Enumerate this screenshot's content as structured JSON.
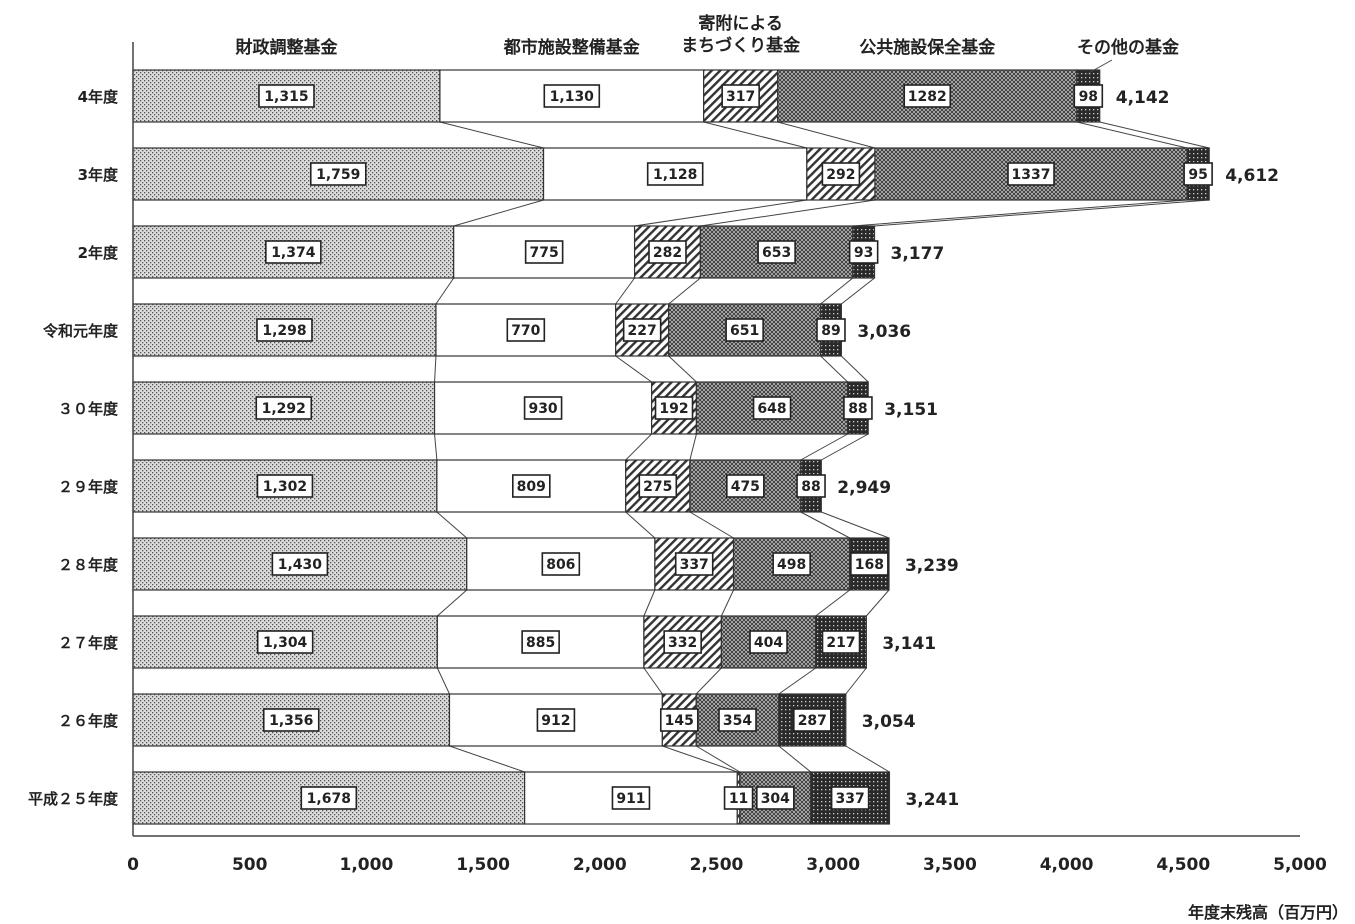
{
  "chart_data": {
    "type": "bar",
    "orientation": "horizontal",
    "stacked": true,
    "categories": [
      "4年度",
      "3年度",
      "2年度",
      "令和元年度",
      "３０年度",
      "２９年度",
      "２８年度",
      "２７年度",
      "２６年度",
      "平成２５年度"
    ],
    "series": [
      {
        "name": "財政調整基金",
        "values": [
          1315,
          1759,
          1374,
          1298,
          1292,
          1302,
          1430,
          1304,
          1356,
          1678
        ],
        "labels": [
          "1,315",
          "1,759",
          "1,374",
          "1,298",
          "1,292",
          "1,302",
          "1,430",
          "1,304",
          "1,356",
          "1,678"
        ]
      },
      {
        "name": "都市施設整備基金",
        "values": [
          1130,
          1128,
          775,
          770,
          930,
          809,
          806,
          885,
          912,
          911
        ],
        "labels": [
          "1,130",
          "1,128",
          "775",
          "770",
          "930",
          "809",
          "806",
          "885",
          "912",
          "911"
        ]
      },
      {
        "name": "寄附による\nまちづくり基金",
        "values": [
          317,
          292,
          282,
          227,
          192,
          275,
          337,
          332,
          145,
          11
        ],
        "labels": [
          "317",
          "292",
          "282",
          "227",
          "192",
          "275",
          "337",
          "332",
          "145",
          "11"
        ]
      },
      {
        "name": "公共施設保全基金",
        "values": [
          1282,
          1337,
          653,
          651,
          648,
          475,
          498,
          404,
          354,
          304
        ],
        "labels": [
          "1282",
          "1337",
          "653",
          "651",
          "648",
          "475",
          "498",
          "404",
          "354",
          "304"
        ]
      },
      {
        "name": "その他の基金",
        "values": [
          98,
          95,
          93,
          89,
          88,
          88,
          168,
          217,
          287,
          337
        ],
        "labels": [
          "98",
          "95",
          "93",
          "89",
          "88",
          "88",
          "168",
          "217",
          "287",
          "337"
        ]
      }
    ],
    "totals": [
      "4,142",
      "4,612",
      "3,177",
      "3,036",
      "3,151",
      "2,949",
      "3,239",
      "3,141",
      "3,054",
      "3,241"
    ],
    "xlim": [
      0,
      5000
    ],
    "xticks": [
      "0",
      "500",
      "1,000",
      "1,500",
      "2,000",
      "2,500",
      "3,000",
      "3,500",
      "4,000",
      "4,500",
      "5,000"
    ],
    "xlabel": "年度末残高（百万円）",
    "legend": "top",
    "grid": false,
    "colors": [
      "#d9d9d9",
      "#ffffff",
      "#8a8a8a",
      "#a6a6a6",
      "#3a3a3a"
    ]
  }
}
